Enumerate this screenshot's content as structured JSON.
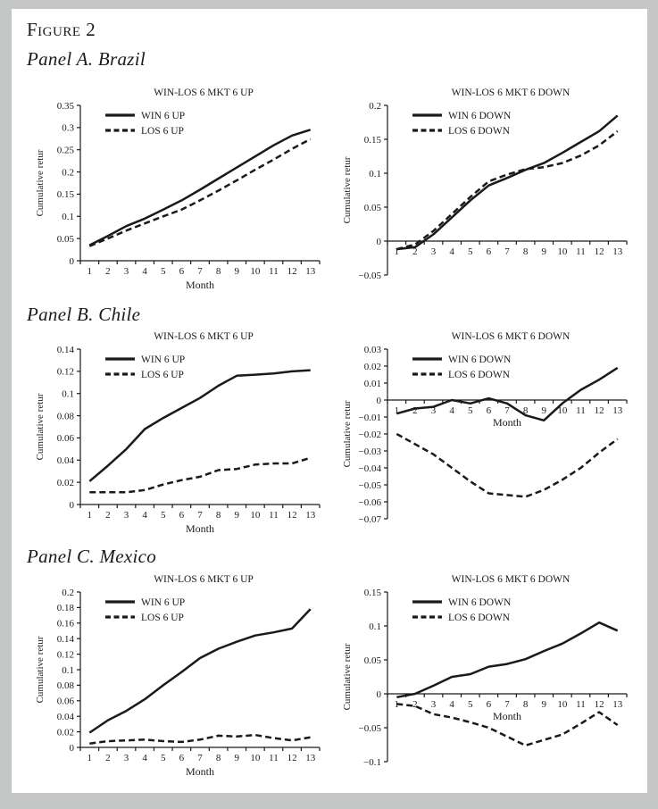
{
  "figure": {
    "title": "Figure 2"
  },
  "panels": [
    {
      "label": "Panel A. Brazil"
    },
    {
      "label": "Panel B. Chile"
    },
    {
      "label": "Panel C. Mexico"
    }
  ],
  "colors": {
    "ink": "#1a1a1a",
    "page": "#ffffff",
    "frame": "#c5c7c6"
  },
  "chart_data": [
    {
      "type": "line",
      "panel": "Panel A. Brazil",
      "position": "left",
      "title": "WIN-LOS 6 MKT 6 UP",
      "ylabel": "Cumulative retur",
      "xlabel": "Month",
      "xlabel_placement": "below",
      "axis_at_zero": false,
      "ylim": [
        0,
        0.35
      ],
      "ytick_step": 0.05,
      "grid": false,
      "legend_position": "top-left",
      "categories": [
        1,
        2,
        3,
        4,
        5,
        6,
        7,
        8,
        9,
        10,
        11,
        12,
        13
      ],
      "series": [
        {
          "name": "WIN 6 UP",
          "style": "solid",
          "values": [
            0.035,
            0.056,
            0.078,
            0.095,
            0.115,
            0.136,
            0.16,
            0.185,
            0.21,
            0.235,
            0.26,
            0.282,
            0.295
          ]
        },
        {
          "name": "LOS 6 UP",
          "style": "dashed",
          "values": [
            0.033,
            0.05,
            0.068,
            0.084,
            0.1,
            0.115,
            0.136,
            0.158,
            0.181,
            0.205,
            0.228,
            0.252,
            0.274
          ]
        }
      ]
    },
    {
      "type": "line",
      "panel": "Panel A. Brazil",
      "position": "right",
      "title": "WIN-LOS 6 MKT 6 DOWN",
      "ylabel": "Cumulative retur",
      "xlabel": "",
      "xlabel_placement": "none",
      "axis_at_zero": true,
      "ylim": [
        -0.05,
        0.2
      ],
      "ytick_step": 0.05,
      "grid": false,
      "legend_position": "top-left",
      "categories": [
        1,
        2,
        3,
        4,
        5,
        6,
        7,
        8,
        9,
        10,
        11,
        12,
        13
      ],
      "series": [
        {
          "name": "WIN 6 DOWN",
          "style": "solid",
          "values": [
            -0.012,
            -0.009,
            0.01,
            0.035,
            0.06,
            0.082,
            0.093,
            0.105,
            0.115,
            0.13,
            0.146,
            0.162,
            0.185
          ]
        },
        {
          "name": "LOS 6 DOWN",
          "style": "dashed",
          "values": [
            -0.012,
            -0.005,
            0.015,
            0.04,
            0.065,
            0.088,
            0.098,
            0.106,
            0.109,
            0.115,
            0.126,
            0.141,
            0.162
          ]
        }
      ]
    },
    {
      "type": "line",
      "panel": "Panel B. Chile",
      "position": "left",
      "title": "WIN-LOS 6 MKT 6 UP",
      "ylabel": "Cumulative retur",
      "xlabel": "Month",
      "xlabel_placement": "below",
      "axis_at_zero": false,
      "ylim": [
        0,
        0.14
      ],
      "ytick_step": 0.02,
      "grid": false,
      "legend_position": "top-left",
      "categories": [
        1,
        2,
        3,
        4,
        5,
        6,
        7,
        8,
        9,
        10,
        11,
        12,
        13
      ],
      "series": [
        {
          "name": "WIN 6 UP",
          "style": "solid",
          "values": [
            0.021,
            0.035,
            0.05,
            0.068,
            0.078,
            0.087,
            0.096,
            0.107,
            0.116,
            0.117,
            0.118,
            0.12,
            0.121
          ]
        },
        {
          "name": "LOS 6 UP",
          "style": "dashed",
          "values": [
            0.011,
            0.011,
            0.011,
            0.013,
            0.018,
            0.022,
            0.025,
            0.031,
            0.032,
            0.036,
            0.037,
            0.037,
            0.042
          ]
        }
      ]
    },
    {
      "type": "line",
      "panel": "Panel B. Chile",
      "position": "right",
      "title": "WIN-LOS 6 MKT 6 DOWN",
      "ylabel": "Cumulative retur",
      "xlabel": "Month",
      "xlabel_placement": "inside",
      "axis_at_zero": true,
      "ylim": [
        -0.07,
        0.03
      ],
      "ytick_step": 0.01,
      "grid": false,
      "legend_position": "top-left",
      "categories": [
        1,
        2,
        3,
        4,
        5,
        6,
        7,
        8,
        9,
        10,
        11,
        12,
        13
      ],
      "series": [
        {
          "name": "WIN 6 DOWN",
          "style": "solid",
          "values": [
            -0.008,
            -0.005,
            -0.004,
            0.0,
            -0.002,
            0.001,
            -0.002,
            -0.009,
            -0.012,
            -0.002,
            0.006,
            0.012,
            0.019
          ]
        },
        {
          "name": "LOS 6 DOWN",
          "style": "dashed",
          "values": [
            -0.02,
            -0.026,
            -0.032,
            -0.04,
            -0.048,
            -0.055,
            -0.056,
            -0.057,
            -0.053,
            -0.047,
            -0.04,
            -0.031,
            -0.023
          ]
        }
      ]
    },
    {
      "type": "line",
      "panel": "Panel C. Mexico",
      "position": "left",
      "title": "WIN-LOS 6 MKT 6 UP",
      "ylabel": "Cumulative retur",
      "xlabel": "Month",
      "xlabel_placement": "below",
      "axis_at_zero": false,
      "ylim": [
        0,
        0.2
      ],
      "ytick_step": 0.02,
      "grid": false,
      "legend_position": "top-left",
      "categories": [
        1,
        2,
        3,
        4,
        5,
        6,
        7,
        8,
        9,
        10,
        11,
        12,
        13
      ],
      "series": [
        {
          "name": "WIN 6 UP",
          "style": "solid",
          "values": [
            0.019,
            0.035,
            0.047,
            0.062,
            0.08,
            0.097,
            0.115,
            0.127,
            0.136,
            0.144,
            0.148,
            0.153,
            0.178
          ]
        },
        {
          "name": "LOS 6 UP",
          "style": "dashed",
          "values": [
            0.005,
            0.008,
            0.009,
            0.01,
            0.008,
            0.007,
            0.01,
            0.015,
            0.014,
            0.016,
            0.012,
            0.009,
            0.013
          ]
        }
      ]
    },
    {
      "type": "line",
      "panel": "Panel C. Mexico",
      "position": "right",
      "title": "WIN-LOS 6 MKT 6 DOWN",
      "ylabel": "Cumulative retur",
      "xlabel": "Month",
      "xlabel_placement": "inside",
      "axis_at_zero": true,
      "ylim": [
        -0.1,
        0.15
      ],
      "ytick_step": 0.05,
      "grid": false,
      "legend_position": "top-left",
      "categories": [
        1,
        2,
        3,
        4,
        5,
        6,
        7,
        8,
        9,
        10,
        11,
        12,
        13
      ],
      "series": [
        {
          "name": "WIN 6 DOWN",
          "style": "solid",
          "values": [
            -0.005,
            0.0,
            0.012,
            0.025,
            0.029,
            0.04,
            0.044,
            0.051,
            0.063,
            0.074,
            0.089,
            0.105,
            0.093
          ]
        },
        {
          "name": "LOS 6 DOWN",
          "style": "dashed",
          "values": [
            -0.015,
            -0.018,
            -0.03,
            -0.035,
            -0.042,
            -0.05,
            -0.063,
            -0.076,
            -0.068,
            -0.06,
            -0.044,
            -0.027,
            -0.046
          ]
        }
      ]
    }
  ]
}
